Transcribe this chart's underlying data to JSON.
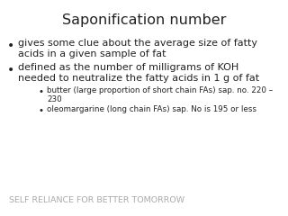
{
  "title": "Saponification number",
  "title_fontsize": 11.5,
  "title_color": "#222222",
  "background_color": "#ffffff",
  "bullet1_line1": "gives some clue about the average size of fatty",
  "bullet1_line2": "acids in a given sample of fat",
  "bullet2_line1": "defined as the number of milligrams of KOH",
  "bullet2_line2": "needed to neutralize the fatty acids in 1 g of fat",
  "sub_bullet1_line1": "butter (large proportion of short chain FAs) sap. no. 220 –",
  "sub_bullet1_line2": "230",
  "sub_bullet2": "oleomargarine (long chain FAs) sap. No is 195 or less",
  "footer": "SELF RELIANCE FOR BETTER TOMORROW",
  "footer_color": "#aaaaaa",
  "text_color": "#222222",
  "main_fontsize": 8.0,
  "sub_fontsize": 6.3,
  "footer_fontsize": 6.8
}
